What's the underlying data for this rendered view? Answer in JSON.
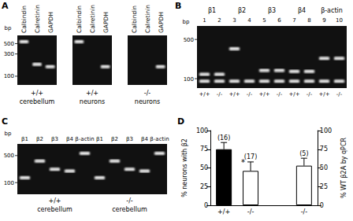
{
  "panels": {
    "A": {
      "label": "A",
      "unit": "bp",
      "ylim": [
        65,
        750
      ],
      "ticks": [
        500,
        300,
        100
      ],
      "gels": [
        {
          "lanes": [
            {
              "label": "Calbindin",
              "bands": [
                550
              ]
            },
            {
              "label": "Calretinin",
              "bands": [
                180
              ]
            },
            {
              "label": "GAPDH",
              "bands": [
                160
              ]
            }
          ],
          "caption": [
            "+/+",
            "cerebellum"
          ]
        },
        {
          "lanes": [
            {
              "label": "Calbindin",
              "bands": [
                550
              ]
            },
            {
              "label": "Calretinin",
              "bands": []
            },
            {
              "label": "GAPDH",
              "bands": [
                160
              ]
            }
          ],
          "caption": [
            "+/+",
            "neurons"
          ]
        },
        {
          "lanes": [
            {
              "label": "Calbindin",
              "bands": []
            },
            {
              "label": "Calretinin",
              "bands": []
            },
            {
              "label": "GAPDH",
              "bands": [
                160
              ]
            }
          ],
          "caption": [
            "-/-",
            "neurons"
          ]
        }
      ]
    },
    "B": {
      "label": "B",
      "unit": "bp",
      "ylim": [
        68,
        870
      ],
      "ticks": [
        500,
        100
      ],
      "groups": [
        {
          "label": "β1",
          "lanes": [
            1,
            2
          ]
        },
        {
          "label": "β2",
          "lanes": [
            3,
            4
          ]
        },
        {
          "label": "β3",
          "lanes": [
            5,
            6
          ]
        },
        {
          "label": "β4",
          "lanes": [
            7,
            8
          ]
        },
        {
          "label": "β-actin",
          "lanes": [
            9,
            10
          ]
        }
      ],
      "lanes": [
        {
          "number": 1,
          "genotype": "+/+",
          "bands": [
            120,
            90
          ]
        },
        {
          "number": 2,
          "genotype": "-/-",
          "bands": [
            120,
            90
          ]
        },
        {
          "number": 3,
          "genotype": "+/+",
          "bands": [
            340,
            90
          ]
        },
        {
          "number": 4,
          "genotype": "-/-",
          "bands": [
            90
          ]
        },
        {
          "number": 5,
          "genotype": "+/+",
          "bands": [
            140,
            90
          ]
        },
        {
          "number": 6,
          "genotype": "-/-",
          "bands": [
            140,
            90
          ]
        },
        {
          "number": 7,
          "genotype": "+/+",
          "bands": [
            135,
            90
          ]
        },
        {
          "number": 8,
          "genotype": "-/-",
          "bands": [
            135,
            90
          ]
        },
        {
          "number": 9,
          "genotype": "+/+",
          "bands": [
            230,
            90
          ]
        },
        {
          "number": 10,
          "genotype": "-/-",
          "bands": [
            230,
            90
          ]
        }
      ]
    },
    "C": {
      "label": "C",
      "unit": "bp",
      "ylim": [
        50,
        1000
      ],
      "ticks": [
        500,
        100
      ],
      "gels": [
        {
          "lanes": [
            {
              "label": "β1",
              "bands": [
                133
              ]
            },
            {
              "label": "β2",
              "bands": [
                360
              ]
            },
            {
              "label": "β3",
              "bands": [
                222
              ]
            },
            {
              "label": "β4",
              "bands": [
                200
              ]
            },
            {
              "label": "β-actin",
              "bands": [
                570
              ]
            }
          ],
          "caption": [
            "+/+",
            "cerebellum"
          ]
        },
        {
          "lanes": [
            {
              "label": "β1",
              "bands": [
                133
              ]
            },
            {
              "label": "β2",
              "bands": [
                360
              ]
            },
            {
              "label": "β3",
              "bands": [
                222
              ]
            },
            {
              "label": "β4",
              "bands": [
                200
              ]
            },
            {
              "label": "β-actin",
              "bands": [
                570
              ]
            }
          ],
          "caption": [
            "-/-",
            "cerebellum"
          ]
        }
      ]
    }
  },
  "chart_data": {
    "type": "bar",
    "panel_label": "D",
    "categories": [
      "+/+",
      "-/-",
      null,
      "-/-"
    ],
    "ylabel": "% neurons with β2",
    "y2label": "% WT β2A by qPCR",
    "ylim": [
      0,
      100
    ],
    "yticks": [
      0,
      25,
      50,
      75,
      100
    ],
    "y2lim": [
      0,
      100
    ],
    "y2ticks": [
      0,
      25,
      50,
      75,
      100
    ],
    "grid": false,
    "series": [
      {
        "name": "% neurons with β2",
        "values": [
          75,
          46,
          null,
          null
        ],
        "colors": [
          "#000000",
          "#ffffff",
          null,
          null
        ],
        "errors": [
          9,
          12,
          null,
          null
        ],
        "n_labels": [
          "(16)",
          "(17)",
          null,
          null
        ],
        "significance": [
          null,
          "*",
          null,
          null
        ]
      },
      {
        "name": "% WT β2A by qPCR",
        "axis": "y2",
        "values": [
          null,
          null,
          null,
          53
        ],
        "colors": [
          null,
          null,
          null,
          "#ffffff"
        ],
        "errors": [
          null,
          null,
          null,
          10
        ],
        "n_labels": [
          null,
          null,
          null,
          "(5)"
        ],
        "significance": [
          null,
          null,
          null,
          null
        ]
      }
    ]
  }
}
